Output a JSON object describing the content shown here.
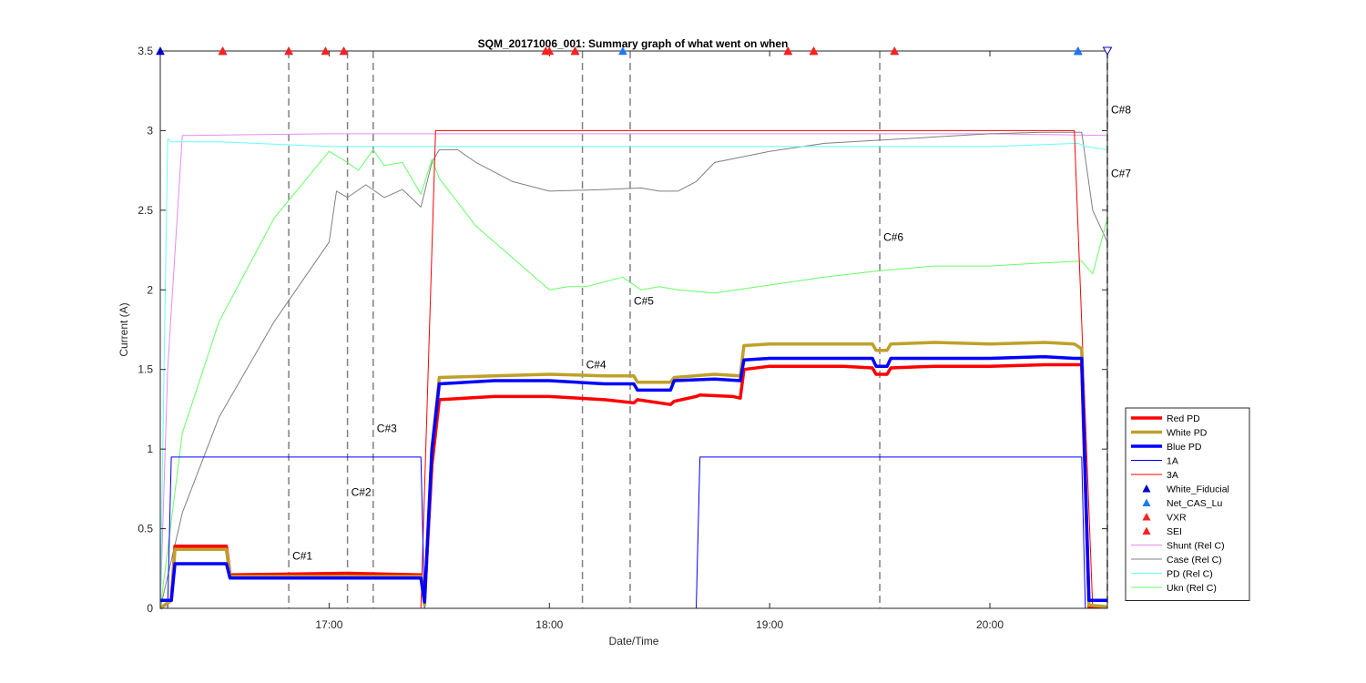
{
  "chart_data": {
    "type": "line",
    "title": "SQM_20171006_001: Summary graph of what went on when",
    "xlabel": "Date/Time",
    "ylabel": "Current (A)",
    "xlim": [
      "16:14",
      "20:32"
    ],
    "ylim": [
      0,
      3.5
    ],
    "x_ticks": [
      "17:00",
      "18:00",
      "19:00",
      "20:00"
    ],
    "y_ticks": [
      "0",
      "0.5",
      "1",
      "1.5",
      "2",
      "2.5",
      "3",
      "3.5"
    ],
    "grid": false,
    "legend_position": "right-bottom",
    "series": [
      {
        "name": "Red PD",
        "color": "#ff0000",
        "width": 3.5,
        "x": [
          "16:14",
          "16:17",
          "16:18",
          "16:32",
          "16:33",
          "17:05",
          "17:25",
          "17:26",
          "17:28",
          "17:30",
          "17:45",
          "18:00",
          "18:15",
          "18:23",
          "18:24",
          "18:33",
          "18:34",
          "18:40",
          "18:41",
          "18:50",
          "18:52",
          "18:53",
          "19:00",
          "19:20",
          "19:28",
          "19:29",
          "19:32",
          "19:33",
          "19:45",
          "20:00",
          "20:15",
          "20:23",
          "20:25",
          "20:27",
          "20:32"
        ],
        "y": [
          0,
          0.05,
          0.39,
          0.39,
          0.21,
          0.22,
          0.21,
          0.05,
          0.9,
          1.31,
          1.33,
          1.33,
          1.31,
          1.29,
          1.31,
          1.28,
          1.3,
          1.33,
          1.34,
          1.33,
          1.32,
          1.5,
          1.52,
          1.52,
          1.51,
          1.47,
          1.47,
          1.51,
          1.52,
          1.52,
          1.53,
          1.53,
          1.53,
          0.01,
          0.01
        ]
      },
      {
        "name": "White PD",
        "color": "#bfa02a",
        "width": 3.5,
        "x": [
          "16:14",
          "16:17",
          "16:18",
          "16:32",
          "16:33",
          "17:05",
          "17:25",
          "17:26",
          "17:28",
          "17:30",
          "17:45",
          "18:00",
          "18:15",
          "18:23",
          "18:24",
          "18:33",
          "18:34",
          "18:45",
          "18:52",
          "18:53",
          "19:00",
          "19:20",
          "19:28",
          "19:29",
          "19:32",
          "19:33",
          "19:45",
          "20:00",
          "20:15",
          "20:23",
          "20:25",
          "20:27",
          "20:32"
        ],
        "y": [
          0,
          0.05,
          0.37,
          0.37,
          0.2,
          0.2,
          0.2,
          0.02,
          1.0,
          1.45,
          1.46,
          1.47,
          1.46,
          1.46,
          1.42,
          1.42,
          1.45,
          1.47,
          1.46,
          1.65,
          1.66,
          1.66,
          1.66,
          1.62,
          1.62,
          1.66,
          1.67,
          1.66,
          1.67,
          1.66,
          1.63,
          0.02,
          0.01
        ]
      },
      {
        "name": "Blue PD",
        "color": "#0000ff",
        "width": 3.5,
        "x": [
          "16:14",
          "16:17",
          "16:18",
          "16:32",
          "16:33",
          "17:05",
          "17:25",
          "17:26",
          "17:28",
          "17:30",
          "17:45",
          "18:00",
          "18:15",
          "18:23",
          "18:24",
          "18:33",
          "18:34",
          "18:45",
          "18:52",
          "18:53",
          "19:00",
          "19:20",
          "19:28",
          "19:29",
          "19:32",
          "19:33",
          "19:45",
          "20:00",
          "20:15",
          "20:23",
          "20:25",
          "20:27",
          "20:32"
        ],
        "y": [
          0.05,
          0.05,
          0.28,
          0.28,
          0.19,
          0.19,
          0.19,
          0.04,
          1.0,
          1.41,
          1.43,
          1.43,
          1.41,
          1.41,
          1.37,
          1.37,
          1.43,
          1.44,
          1.43,
          1.56,
          1.57,
          1.57,
          1.57,
          1.52,
          1.52,
          1.57,
          1.57,
          1.57,
          1.58,
          1.57,
          1.57,
          0.05,
          0.05
        ]
      },
      {
        "name": "1A",
        "color": "#0000ff",
        "width": 1,
        "x": [
          "16:14",
          "16:16",
          "16:17",
          "17:25",
          "17:26",
          "18:40",
          "18:41",
          "20:25",
          "20:26",
          "20:32"
        ],
        "y": [
          0,
          0,
          0.95,
          0.95,
          0,
          0,
          0.95,
          0.95,
          0,
          0
        ]
      },
      {
        "name": "3A",
        "color": "#ff0000",
        "width": 1,
        "x": [
          "16:14",
          "17:25",
          "17:29",
          "20:23",
          "20:28",
          "20:32"
        ],
        "y": [
          0,
          0,
          3.0,
          3.0,
          0,
          0
        ]
      },
      {
        "name": "Shunt (Rel C)",
        "color": "#e48cf0",
        "width": 1,
        "x": [
          "16:14",
          "16:16",
          "16:20",
          "16:22",
          "17:00",
          "18:00",
          "19:00",
          "20:00",
          "20:32"
        ],
        "y": [
          0,
          1.5,
          2.97,
          2.97,
          2.98,
          2.98,
          2.98,
          2.98,
          2.97
        ]
      },
      {
        "name": "Case (Rel C)",
        "color": "#808080",
        "width": 1,
        "x": [
          "16:14",
          "16:20",
          "16:30",
          "16:45",
          "17:00",
          "17:02",
          "17:05",
          "17:10",
          "17:15",
          "17:20",
          "17:25",
          "17:28",
          "17:30",
          "17:35",
          "17:40",
          "17:50",
          "18:00",
          "18:15",
          "18:25",
          "18:30",
          "18:35",
          "18:40",
          "18:45",
          "19:00",
          "19:15",
          "19:30",
          "19:45",
          "20:00",
          "20:15",
          "20:20",
          "20:25",
          "20:28",
          "20:32"
        ],
        "y": [
          0,
          0.6,
          1.2,
          1.8,
          2.3,
          2.62,
          2.58,
          2.66,
          2.58,
          2.63,
          2.52,
          2.8,
          2.88,
          2.88,
          2.8,
          2.68,
          2.62,
          2.63,
          2.64,
          2.62,
          2.62,
          2.68,
          2.8,
          2.87,
          2.92,
          2.94,
          2.96,
          2.98,
          2.99,
          2.99,
          2.99,
          2.5,
          2.3
        ]
      },
      {
        "name": "PD (Rel C)",
        "color": "#66ffff",
        "width": 1,
        "x": [
          "16:14",
          "16:16",
          "16:17",
          "16:30",
          "17:00",
          "18:00",
          "19:00",
          "20:00",
          "20:24",
          "20:26",
          "20:32"
        ],
        "y": [
          0,
          2.95,
          2.93,
          2.93,
          2.9,
          2.9,
          2.9,
          2.9,
          2.92,
          2.9,
          2.88
        ]
      },
      {
        "name": "Ukn (Rel C)",
        "color": "#66ff66",
        "width": 1,
        "x": [
          "16:14",
          "16:20",
          "16:30",
          "16:45",
          "17:00",
          "17:05",
          "17:08",
          "17:12",
          "17:15",
          "17:20",
          "17:25",
          "17:28",
          "17:30",
          "17:40",
          "17:50",
          "18:00",
          "18:05",
          "18:10",
          "18:15",
          "18:20",
          "18:25",
          "18:30",
          "18:35",
          "18:45",
          "19:00",
          "19:15",
          "19:30",
          "19:45",
          "20:00",
          "20:15",
          "20:25",
          "20:28",
          "20:32"
        ],
        "y": [
          0,
          1.1,
          1.8,
          2.45,
          2.87,
          2.8,
          2.75,
          2.88,
          2.78,
          2.8,
          2.6,
          2.82,
          2.7,
          2.4,
          2.2,
          2.0,
          2.02,
          2.02,
          2.05,
          2.08,
          2.0,
          2.02,
          2.0,
          1.98,
          2.03,
          2.08,
          2.12,
          2.15,
          2.15,
          2.17,
          2.18,
          2.1,
          2.45
        ]
      }
    ],
    "event_markers": [
      {
        "name": "White_Fiducial",
        "color": "#0000c8",
        "symbol": "triangle-up",
        "y": 3.5,
        "x": [
          "16:14",
          "20:24"
        ]
      },
      {
        "name": "Net_CAS_Lu",
        "color": "#1e78ff",
        "symbol": "triangle-up",
        "y": 3.5,
        "x": [
          "16:31",
          "16:49",
          "17:04",
          "18:20",
          "19:34",
          "20:24"
        ]
      },
      {
        "name": "VXR",
        "color": "#ff2020",
        "symbol": "triangle-up",
        "y": 3.5,
        "x": [
          "16:31",
          "16:59",
          "17:59",
          "18:07",
          "19:05",
          "19:12"
        ]
      },
      {
        "name": "SEI",
        "color": "#ff2020",
        "symbol": "triangle-up",
        "y": 3.5,
        "x": [
          "16:31",
          "16:49",
          "17:04",
          "18:00",
          "18:07",
          "19:05",
          "19:12",
          "19:34"
        ]
      },
      {
        "name": "",
        "color": "#0000c8",
        "symbol": "triangle-down-open",
        "y": 3.5,
        "x": [
          "20:32"
        ]
      }
    ],
    "vertical_lines": [
      {
        "label": "C#1",
        "x": "16:49",
        "label_y": 0.33
      },
      {
        "label": "C#2",
        "x": "17:05",
        "label_y": 0.73
      },
      {
        "label": "C#3",
        "x": "17:12",
        "label_y": 1.13
      },
      {
        "label": "C#4",
        "x": "18:09",
        "label_y": 1.53
      },
      {
        "label": "C#5",
        "x": "18:22",
        "label_y": 1.93
      },
      {
        "label": "C#6",
        "x": "19:30",
        "label_y": 2.33
      },
      {
        "label": "C#7",
        "x": "20:32",
        "label_y": 2.73
      },
      {
        "label": "C#8",
        "x": "20:32",
        "label_y": 3.13
      }
    ],
    "legend": [
      {
        "name": "Red PD",
        "kind": "line",
        "color": "#ff0000",
        "width": 3.5
      },
      {
        "name": "White PD",
        "kind": "line",
        "color": "#bfa02a",
        "width": 3.5
      },
      {
        "name": "Blue PD",
        "kind": "line",
        "color": "#0000ff",
        "width": 3.5
      },
      {
        "name": "1A",
        "kind": "line",
        "color": "#0000ff",
        "width": 1
      },
      {
        "name": "3A",
        "kind": "line",
        "color": "#ff0000",
        "width": 1
      },
      {
        "name": "White_Fiducial",
        "kind": "marker",
        "color": "#0000c8"
      },
      {
        "name": "Net_CAS_Lu",
        "kind": "marker",
        "color": "#1e78ff"
      },
      {
        "name": "VXR",
        "kind": "marker",
        "color": "#ff2020"
      },
      {
        "name": "SEI",
        "kind": "marker",
        "color": "#ff2020"
      },
      {
        "name": "Shunt (Rel C)",
        "kind": "line",
        "color": "#e48cf0",
        "width": 1
      },
      {
        "name": "Case (Rel C)",
        "kind": "line",
        "color": "#808080",
        "width": 1
      },
      {
        "name": "PD (Rel C)",
        "kind": "line",
        "color": "#66ffff",
        "width": 1
      },
      {
        "name": "Ukn (Rel C)",
        "kind": "line",
        "color": "#66ff66",
        "width": 1
      }
    ]
  }
}
